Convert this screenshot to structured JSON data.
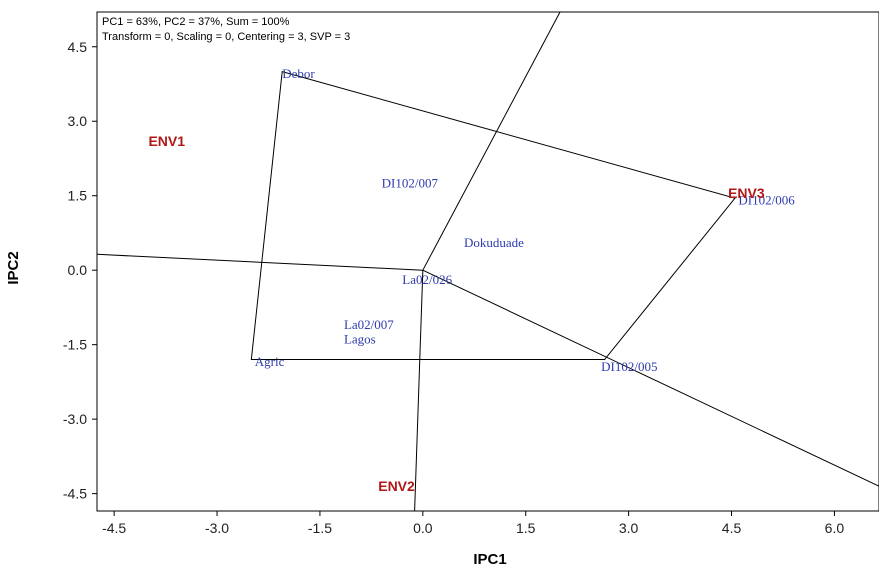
{
  "chart_data": {
    "type": "scatter",
    "subtype": "GGE biplot (which-won-where polygon)",
    "header_lines": [
      "PC1 = 63%, PC2 = 37%, Sum = 100%",
      "Transform = 0, Scaling = 0, Centering = 3, SVP = 3"
    ],
    "xlabel": "IPC1",
    "ylabel": "IPC2",
    "xlim": [
      -4.75,
      6.65
    ],
    "ylim": [
      -4.85,
      5.2
    ],
    "xticks": [
      -4.5,
      -3.0,
      -1.5,
      0.0,
      1.5,
      3.0,
      4.5,
      6.0
    ],
    "xtick_labels": [
      "-4.5",
      "-3.0",
      "-1.5",
      "0.0",
      "1.5",
      "3.0",
      "4.5",
      "6.0"
    ],
    "yticks": [
      4.5,
      3.0,
      1.5,
      0.0,
      -1.5,
      -3.0,
      -4.5
    ],
    "ytick_labels": [
      "4.5",
      "3.0",
      "1.5",
      "0.0",
      "-1.5",
      "-3.0",
      "-4.5"
    ],
    "grid": false,
    "colors": {
      "genotype": "#2f3cb0",
      "environment": "#b01818",
      "lines": "#000000"
    },
    "genotypes": [
      {
        "name": "Debor",
        "x": -2.05,
        "y": 3.95
      },
      {
        "name": "DI102/007",
        "x": -0.6,
        "y": 1.75
      },
      {
        "name": "DI102/006",
        "x": 4.6,
        "y": 1.4
      },
      {
        "name": "Dokuduade",
        "x": 0.6,
        "y": 0.55
      },
      {
        "name": "La02/026",
        "x": -0.3,
        "y": -0.2
      },
      {
        "name": "La02/007",
        "x": -1.15,
        "y": -1.1
      },
      {
        "name": "Lagos",
        "x": -1.15,
        "y": -1.4
      },
      {
        "name": "Agric",
        "x": -2.45,
        "y": -1.85
      },
      {
        "name": "DI102/005",
        "x": 2.6,
        "y": -1.95
      }
    ],
    "environments": [
      {
        "name": "ENV1",
        "x": -4.0,
        "y": 2.6
      },
      {
        "name": "ENV2",
        "x": -0.65,
        "y": -4.35
      },
      {
        "name": "ENV3",
        "x": 4.45,
        "y": 1.55
      }
    ],
    "polygon_vertices": [
      {
        "x": -2.05,
        "y": 4.0
      },
      {
        "x": 4.55,
        "y": 1.45
      },
      {
        "x": 2.65,
        "y": -1.8
      },
      {
        "x": -2.5,
        "y": -1.8
      }
    ],
    "sector_rays_end": [
      {
        "x": 2.0,
        "y": 5.2
      },
      {
        "x": -4.75,
        "y": 0.32
      },
      {
        "x": -0.12,
        "y": -4.85
      },
      {
        "x": 6.65,
        "y": -4.35
      }
    ]
  }
}
